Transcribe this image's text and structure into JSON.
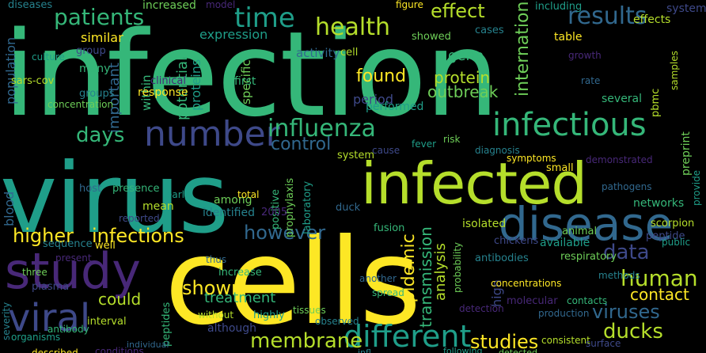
{
  "palette": {
    "background": "#000000",
    "yellow": "#fde725",
    "lime": "#b5de2b",
    "green": "#6ece58",
    "teal_green": "#35b779",
    "teal": "#1f9e89",
    "cyan_blue": "#26828e",
    "blue": "#31688e",
    "indigo": "#3e4989",
    "purple": "#482878",
    "dark_purple": "#440154"
  },
  "words": [
    {
      "text": "infection",
      "color": "#35b779"
    },
    {
      "text": "virus",
      "color": "#1f9e89"
    },
    {
      "text": "cells",
      "color": "#fde725"
    },
    {
      "text": "infected",
      "color": "#b5de2b"
    },
    {
      "text": "study",
      "color": "#482878"
    },
    {
      "text": "disease",
      "color": "#31688e"
    },
    {
      "text": "viral",
      "color": "#3e4989"
    },
    {
      "text": "number",
      "color": "#3e4989"
    },
    {
      "text": "infectious",
      "color": "#35b779"
    },
    {
      "text": "influenza",
      "color": "#35b779"
    },
    {
      "text": "patients",
      "color": "#35b779"
    },
    {
      "text": "time",
      "color": "#1f9e89"
    },
    {
      "text": "results",
      "color": "#31688e"
    },
    {
      "text": "health",
      "color": "#b5de2b"
    },
    {
      "text": "effect",
      "color": "#b5de2b"
    },
    {
      "text": "different",
      "color": "#1f9e89"
    },
    {
      "text": "higher",
      "color": "#fde725"
    },
    {
      "text": "infections",
      "color": "#fde725"
    },
    {
      "text": "membrane",
      "color": "#b5de2b"
    },
    {
      "text": "studies",
      "color": "#fde725"
    },
    {
      "text": "human",
      "color": "#b5de2b"
    },
    {
      "text": "data",
      "color": "#3e4989"
    },
    {
      "text": "however",
      "color": "#31688e"
    },
    {
      "text": "days",
      "color": "#35b779"
    },
    {
      "text": "control",
      "color": "#31688e"
    },
    {
      "text": "found",
      "color": "#fde725"
    },
    {
      "text": "protein",
      "color": "#b5de2b"
    },
    {
      "text": "outbreak",
      "color": "#6ece58"
    },
    {
      "text": "shown",
      "color": "#fde725"
    },
    {
      "text": "ducks",
      "color": "#b5de2b"
    },
    {
      "text": "viruses",
      "color": "#31688e"
    },
    {
      "text": "contact",
      "color": "#fde725"
    },
    {
      "text": "could",
      "color": "#b5de2b"
    },
    {
      "text": "treatment",
      "color": "#35b779"
    },
    {
      "text": "epidemic",
      "color": "#fde725"
    },
    {
      "text": "transmission",
      "color": "#35b779"
    },
    {
      "text": "analysis",
      "color": "#6ece58"
    },
    {
      "text": "international",
      "color": "#1f9e89"
    },
    {
      "text": "expression",
      "color": "#fde725"
    },
    {
      "text": "similar",
      "color": "#35b779"
    },
    {
      "text": "important",
      "color": "#35b779"
    },
    {
      "text": "within",
      "color": "#31688e"
    },
    {
      "text": "potential",
      "color": "#35b779"
    },
    {
      "text": "proteins",
      "color": "#1f9e89"
    },
    {
      "text": "specific",
      "color": "#6ece58"
    },
    {
      "text": "gene",
      "color": "#31688e"
    },
    {
      "text": "population",
      "color": "#31688e"
    },
    {
      "text": "blood",
      "color": "#31688e"
    },
    {
      "text": "many",
      "color": "#fde725"
    },
    {
      "text": "sars-cov",
      "color": "#6ece58"
    },
    {
      "text": "group",
      "color": "#35b779"
    },
    {
      "text": "preprint",
      "color": "#6ece58"
    },
    {
      "text": "culture",
      "color": "#b5de2b"
    },
    {
      "text": "concentration",
      "color": "#35b779"
    },
    {
      "text": "groups",
      "color": "#31688e"
    },
    {
      "text": "response",
      "color": "#31688e"
    },
    {
      "text": "clinical",
      "color": "#b5de2b"
    },
    {
      "text": "activity",
      "color": "#b5de2b"
    },
    {
      "text": "first",
      "color": "#b5de2b"
    },
    {
      "text": "cell",
      "color": "#b5de2b"
    },
    {
      "text": "period",
      "color": "#1f9e89"
    },
    {
      "text": "high",
      "color": "#3e4989"
    },
    {
      "text": "performed",
      "color": "#35b779"
    },
    {
      "text": "showed",
      "color": "#b5de2b"
    },
    {
      "text": "cases",
      "color": "#b5de2b"
    },
    {
      "text": "table",
      "color": "#b5de2b"
    },
    {
      "text": "growth",
      "color": "#b5de2b"
    },
    {
      "text": "rate",
      "color": "#31688e"
    },
    {
      "text": "several",
      "color": "#31688e"
    },
    {
      "text": "effects",
      "color": "#3e4989"
    },
    {
      "text": "systems",
      "color": "#b5de2b"
    },
    {
      "text": "including",
      "color": "#31688e"
    },
    {
      "text": "increased",
      "color": "#b5de2b"
    },
    {
      "text": "diseases",
      "color": "#b5de2b"
    },
    {
      "text": "figure",
      "color": "#b5de2b"
    },
    {
      "text": "model",
      "color": "#b5de2b"
    },
    {
      "text": "host",
      "color": "#b5de2b"
    },
    {
      "text": "presence",
      "color": "#b5de2b"
    },
    {
      "text": "mean",
      "color": "#b5de2b"
    },
    {
      "text": "positive",
      "color": "#b5de2b"
    },
    {
      "text": "reported",
      "color": "#b5de2b"
    },
    {
      "text": "early",
      "color": "#b5de2b"
    },
    {
      "text": "among",
      "color": "#b5de2b"
    },
    {
      "text": "identified",
      "color": "#b5de2b"
    },
    {
      "text": "total",
      "color": "#b5de2b"
    },
    {
      "text": "2005",
      "color": "#b5de2b"
    },
    {
      "text": "duck",
      "color": "#b5de2b"
    },
    {
      "text": "pbmc",
      "color": "#b5de2b"
    },
    {
      "text": "fusion",
      "color": "#b5de2b"
    },
    {
      "text": "isolated",
      "color": "#b5de2b"
    },
    {
      "text": "chickens",
      "color": "#b5de2b"
    },
    {
      "text": "available",
      "color": "#b5de2b"
    },
    {
      "text": "respiratory",
      "color": "#b5de2b"
    },
    {
      "text": "methods",
      "color": "#b5de2b"
    },
    {
      "text": "small",
      "color": "#b5de2b"
    },
    {
      "text": "demonstrated",
      "color": "#b5de2b"
    },
    {
      "text": "severity",
      "color": "#b5de2b"
    },
    {
      "text": "pathogens",
      "color": "#b5de2b"
    },
    {
      "text": "networks",
      "color": "#b5de2b"
    },
    {
      "text": "scorpion",
      "color": "#b5de2b"
    },
    {
      "text": "peptide",
      "color": "#b5de2b"
    },
    {
      "text": "public",
      "color": "#b5de2b"
    },
    {
      "text": "animal",
      "color": "#b5de2b"
    },
    {
      "text": "antibodies",
      "color": "#b5de2b"
    },
    {
      "text": "concentrations",
      "color": "#b5de2b"
    },
    {
      "text": "molecular",
      "color": "#b5de2b"
    },
    {
      "text": "samples",
      "color": "#b5de2b"
    },
    {
      "text": "another",
      "color": "#b5de2b"
    },
    {
      "text": "spread",
      "color": "#b5de2b"
    },
    {
      "text": "without",
      "color": "#b5de2b"
    },
    {
      "text": "although",
      "color": "#b5de2b"
    },
    {
      "text": "highly",
      "color": "#b5de2b"
    },
    {
      "text": "tissues",
      "color": "#b5de2b"
    },
    {
      "text": "observed",
      "color": "#b5de2b"
    },
    {
      "text": "described",
      "color": "#b5de2b"
    },
    {
      "text": "conditions",
      "color": "#b5de2b"
    },
    {
      "text": "individual",
      "color": "#b5de2b"
    },
    {
      "text": "antibody",
      "color": "#b5de2b"
    },
    {
      "text": "interval",
      "color": "#b5de2b"
    },
    {
      "text": "plasma",
      "color": "#b5de2b"
    },
    {
      "text": "organisms",
      "color": "#b5de2b"
    },
    {
      "text": "three",
      "color": "#b5de2b"
    },
    {
      "text": "sequence",
      "color": "#b5de2b"
    },
    {
      "text": "well",
      "color": "#b5de2b"
    },
    {
      "text": "present",
      "color": "#b5de2b"
    },
    {
      "text": "prophylaxis",
      "color": "#b5de2b"
    },
    {
      "text": "laboratory",
      "color": "#b5de2b"
    },
    {
      "text": "thus",
      "color": "#b5de2b"
    },
    {
      "text": "increase",
      "color": "#b5de2b"
    },
    {
      "text": "system",
      "color": "#b5de2b"
    },
    {
      "text": "provide",
      "color": "#b5de2b"
    },
    {
      "text": "probability",
      "color": "#b5de2b"
    },
    {
      "text": "cause",
      "color": "#b5de2b"
    },
    {
      "text": "fever",
      "color": "#b5de2b"
    },
    {
      "text": "risk",
      "color": "#b5de2b"
    },
    {
      "text": "diagnosis",
      "color": "#b5de2b"
    },
    {
      "text": "symptoms",
      "color": "#b5de2b"
    },
    {
      "text": "detection",
      "color": "#b5de2b"
    },
    {
      "text": "peptides",
      "color": "#b5de2b"
    },
    {
      "text": "production",
      "color": "#b5de2b"
    },
    {
      "text": "contacts",
      "color": "#b5de2b"
    },
    {
      "text": "consistent",
      "color": "#b5de2b"
    },
    {
      "text": "surface",
      "color": "#b5de2b"
    },
    {
      "text": "following",
      "color": "#b5de2b"
    },
    {
      "text": "detected",
      "color": "#b5de2b"
    },
    {
      "text": "infl",
      "color": "#b5de2b"
    }
  ]
}
